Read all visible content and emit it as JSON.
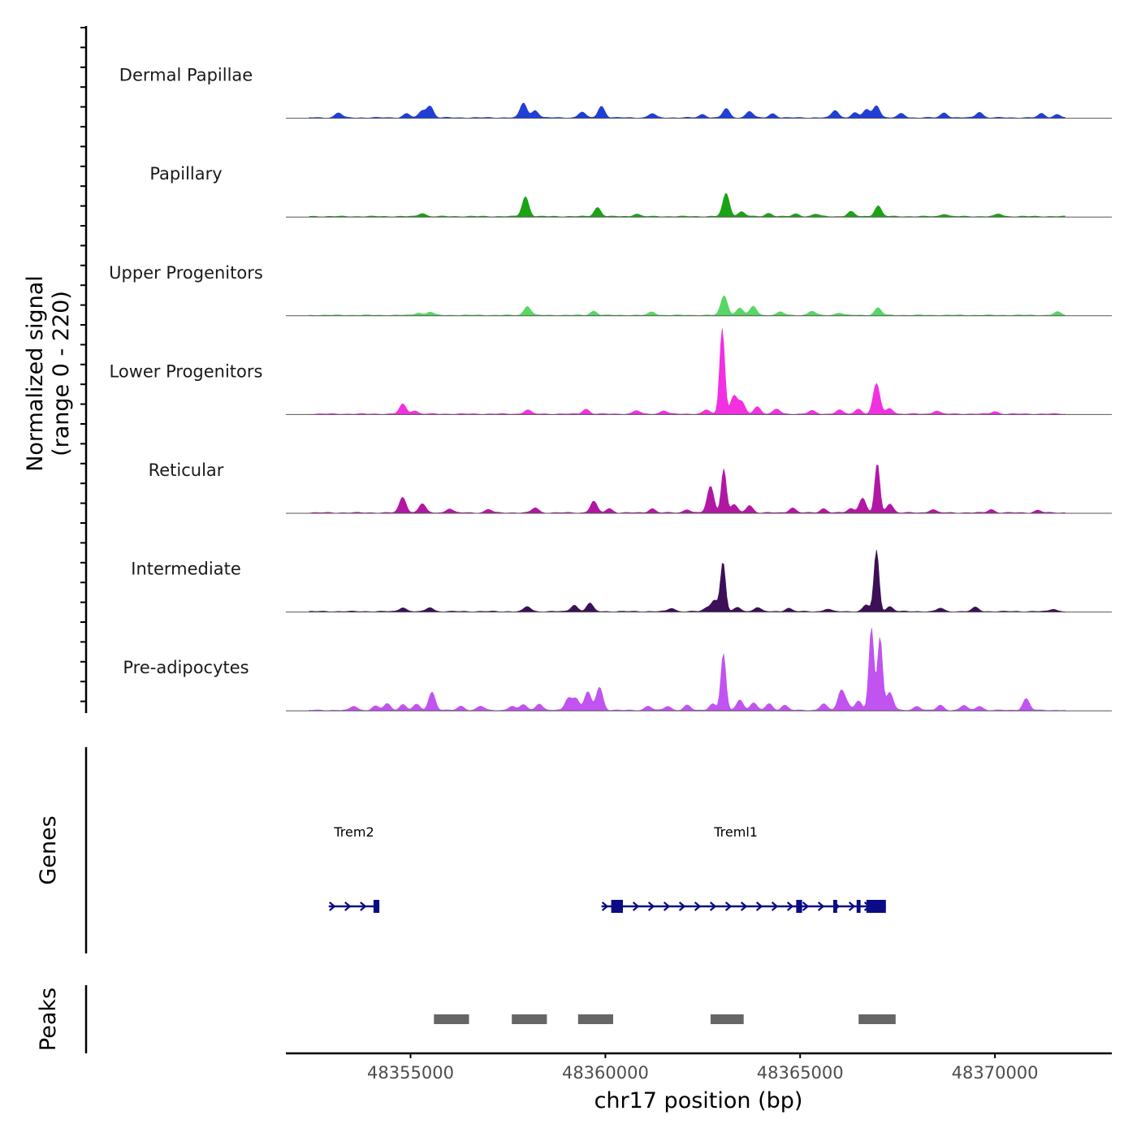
{
  "chart_data": {
    "type": "area",
    "title": "",
    "xlabel": "chr17 position (bp)",
    "ylabel_line1": "Normalized signal",
    "ylabel_line2": "(range 0 - 220)",
    "ylim": [
      0,
      220
    ],
    "xlim": [
      48351800,
      48373000
    ],
    "x_ticks": [
      48355000,
      48360000,
      48365000,
      48370000
    ],
    "x_tick_labels": [
      "48355000",
      "48360000",
      "48365000",
      "48370000"
    ],
    "genes_label": "Genes",
    "peaks_label": "Peaks",
    "tracks": [
      {
        "name": "Dermal Papillae",
        "color": "#1f3fd6",
        "peaks": [
          [
            48353150,
            12
          ],
          [
            48354900,
            10
          ],
          [
            48355300,
            16
          ],
          [
            48355500,
            28
          ],
          [
            48357900,
            36
          ],
          [
            48358200,
            18
          ],
          [
            48359900,
            28
          ],
          [
            48359400,
            14
          ],
          [
            48361200,
            10
          ],
          [
            48362500,
            8
          ],
          [
            48363100,
            22
          ],
          [
            48363700,
            16
          ],
          [
            48364300,
            10
          ],
          [
            48365900,
            18
          ],
          [
            48366400,
            12
          ],
          [
            48366700,
            20
          ],
          [
            48366960,
            30
          ],
          [
            48367600,
            10
          ],
          [
            48368700,
            12
          ],
          [
            48369600,
            14
          ],
          [
            48371200,
            10
          ],
          [
            48371600,
            8
          ]
        ]
      },
      {
        "name": "Papillary",
        "color": "#1aa314",
        "peaks": [
          [
            48355300,
            8
          ],
          [
            48357950,
            48
          ],
          [
            48359800,
            22
          ],
          [
            48360800,
            6
          ],
          [
            48363100,
            56
          ],
          [
            48363500,
            12
          ],
          [
            48364200,
            8
          ],
          [
            48364900,
            6
          ],
          [
            48365400,
            6
          ],
          [
            48366300,
            12
          ],
          [
            48367000,
            26
          ],
          [
            48368700,
            6
          ],
          [
            48370100,
            6
          ]
        ]
      },
      {
        "name": "Upper Progenitors",
        "color": "#57d765",
        "peaks": [
          [
            48355200,
            6
          ],
          [
            48355500,
            8
          ],
          [
            48358000,
            22
          ],
          [
            48359700,
            10
          ],
          [
            48361200,
            8
          ],
          [
            48363050,
            48
          ],
          [
            48363450,
            18
          ],
          [
            48363800,
            22
          ],
          [
            48364500,
            8
          ],
          [
            48365300,
            10
          ],
          [
            48366000,
            6
          ],
          [
            48367000,
            18
          ],
          [
            48371600,
            8
          ]
        ]
      },
      {
        "name": "Lower Progenitors",
        "color": "#f230e2",
        "peaks": [
          [
            48354800,
            24
          ],
          [
            48355100,
            8
          ],
          [
            48358000,
            10
          ],
          [
            48359500,
            12
          ],
          [
            48360800,
            8
          ],
          [
            48361500,
            8
          ],
          [
            48362600,
            10
          ],
          [
            48363000,
            208
          ],
          [
            48363300,
            44
          ],
          [
            48363500,
            28
          ],
          [
            48363900,
            18
          ],
          [
            48364400,
            12
          ],
          [
            48365300,
            8
          ],
          [
            48366000,
            10
          ],
          [
            48366500,
            12
          ],
          [
            48366960,
            74
          ],
          [
            48367300,
            14
          ],
          [
            48368500,
            8
          ],
          [
            48370000,
            6
          ]
        ]
      },
      {
        "name": "Reticular",
        "color": "#b117a3",
        "peaks": [
          [
            48354800,
            38
          ],
          [
            48355300,
            22
          ],
          [
            48356000,
            10
          ],
          [
            48357000,
            8
          ],
          [
            48358200,
            12
          ],
          [
            48359700,
            28
          ],
          [
            48360100,
            10
          ],
          [
            48361200,
            10
          ],
          [
            48362100,
            8
          ],
          [
            48362700,
            64
          ],
          [
            48363040,
            106
          ],
          [
            48363300,
            20
          ],
          [
            48363700,
            18
          ],
          [
            48364800,
            12
          ],
          [
            48365600,
            10
          ],
          [
            48366300,
            10
          ],
          [
            48366600,
            36
          ],
          [
            48366980,
            120
          ],
          [
            48367300,
            22
          ],
          [
            48368400,
            8
          ],
          [
            48369900,
            8
          ],
          [
            48371100,
            6
          ]
        ]
      },
      {
        "name": "Intermediate",
        "color": "#3c0f58",
        "peaks": [
          [
            48354800,
            10
          ],
          [
            48355500,
            10
          ],
          [
            48358000,
            12
          ],
          [
            48359200,
            16
          ],
          [
            48359600,
            20
          ],
          [
            48361700,
            8
          ],
          [
            48362600,
            8
          ],
          [
            48362800,
            28
          ],
          [
            48363020,
            120
          ],
          [
            48363400,
            10
          ],
          [
            48363900,
            10
          ],
          [
            48364700,
            8
          ],
          [
            48365700,
            6
          ],
          [
            48366700,
            16
          ],
          [
            48366960,
            148
          ],
          [
            48367300,
            12
          ],
          [
            48368600,
            8
          ],
          [
            48369500,
            10
          ],
          [
            48371500,
            6
          ]
        ]
      },
      {
        "name": "Pre-adipocytes",
        "color": "#c153f1",
        "peaks": [
          [
            48353550,
            10
          ],
          [
            48354100,
            10
          ],
          [
            48354400,
            16
          ],
          [
            48354800,
            14
          ],
          [
            48355150,
            14
          ],
          [
            48355550,
            44
          ],
          [
            48356300,
            10
          ],
          [
            48356800,
            10
          ],
          [
            48357600,
            10
          ],
          [
            48357900,
            14
          ],
          [
            48358300,
            16
          ],
          [
            48359050,
            30
          ],
          [
            48359250,
            28
          ],
          [
            48359550,
            44
          ],
          [
            48359850,
            56
          ],
          [
            48361100,
            10
          ],
          [
            48361600,
            10
          ],
          [
            48362100,
            12
          ],
          [
            48362750,
            16
          ],
          [
            48363030,
            138
          ],
          [
            48363450,
            26
          ],
          [
            48363800,
            18
          ],
          [
            48364200,
            16
          ],
          [
            48364600,
            12
          ],
          [
            48365600,
            16
          ],
          [
            48366050,
            46
          ],
          [
            48366200,
            16
          ],
          [
            48366500,
            22
          ],
          [
            48366830,
            200
          ],
          [
            48367050,
            178
          ],
          [
            48367300,
            44
          ],
          [
            48368000,
            10
          ],
          [
            48368600,
            12
          ],
          [
            48369200,
            12
          ],
          [
            48369600,
            10
          ],
          [
            48370800,
            28
          ]
        ]
      }
    ],
    "genes": [
      {
        "name": "Trem2",
        "start": 48352900,
        "end": 48354200,
        "strand": "+",
        "label_pos": 48353550,
        "exons": [
          [
            48354050,
            48354200
          ]
        ]
      },
      {
        "name": "Treml1",
        "start": 48359900,
        "end": 48367200,
        "strand": "+",
        "label_pos": 48363350,
        "exons": [
          [
            48360150,
            48360450
          ],
          [
            48364900,
            48365050
          ],
          [
            48365850,
            48365950
          ],
          [
            48366450,
            48366550
          ],
          [
            48366700,
            48367200
          ]
        ]
      }
    ],
    "peak_regions": [
      [
        48355600,
        48356500
      ],
      [
        48357600,
        48358500
      ],
      [
        48359300,
        48360200
      ],
      [
        48362700,
        48363550
      ],
      [
        48366500,
        48367450
      ]
    ]
  }
}
